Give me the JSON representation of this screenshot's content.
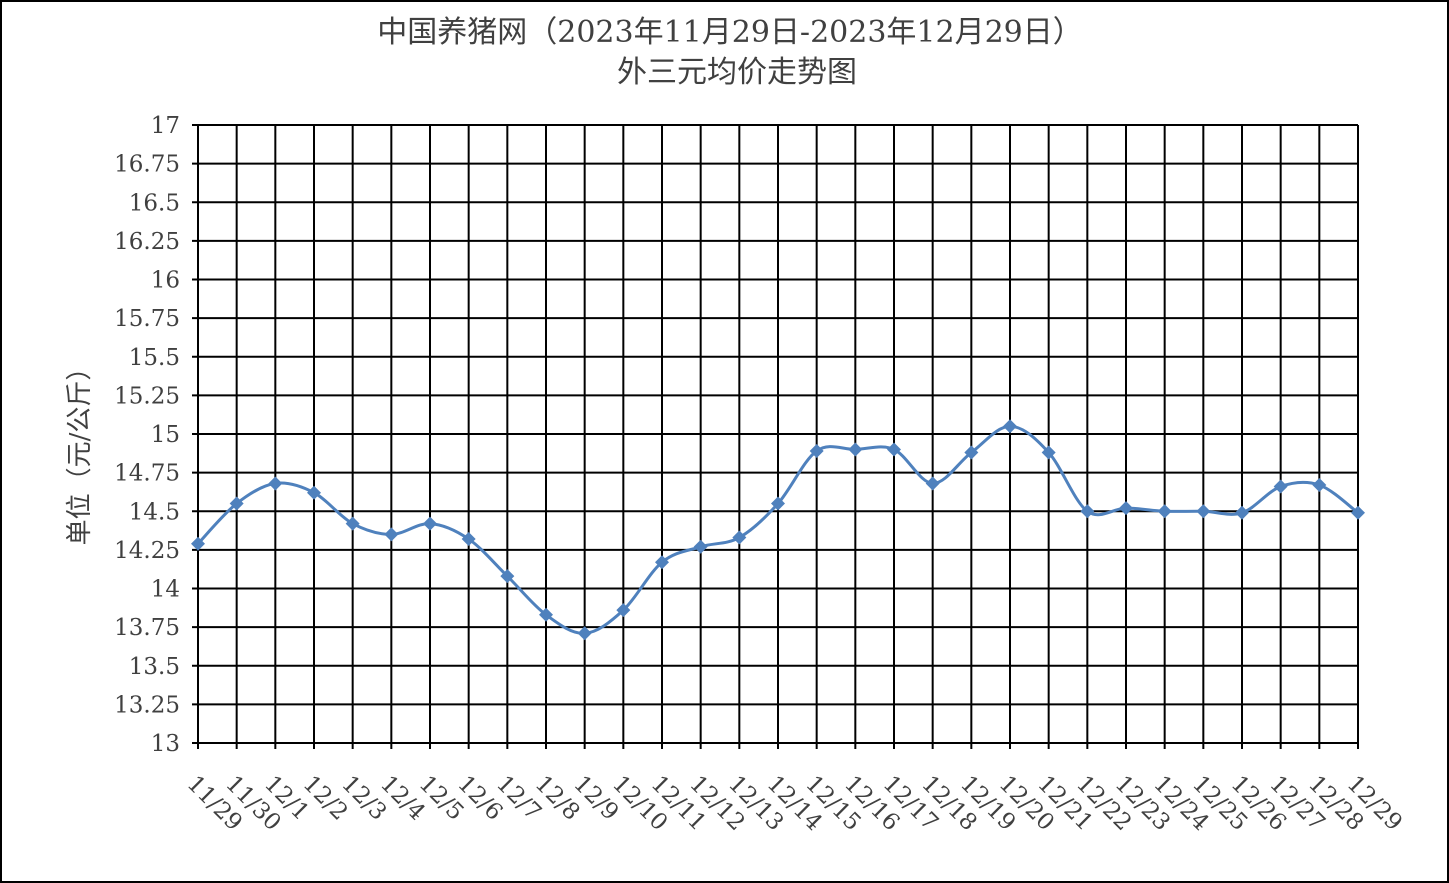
{
  "chart_data": {
    "type": "line",
    "title": "中国养猪网（2023年11月29日-2023年12月29日）",
    "subtitle": "外三元均价走势图",
    "y_label": "单位（元/公斤）",
    "categories": [
      "11/29",
      "11/30",
      "12/1",
      "12/2",
      "12/3",
      "12/4",
      "12/5",
      "12/6",
      "12/7",
      "12/8",
      "12/9",
      "12/10",
      "12/11",
      "12/12",
      "12/13",
      "12/14",
      "12/15",
      "12/16",
      "12/17",
      "12/18",
      "12/19",
      "12/20",
      "12/21",
      "12/22",
      "12/23",
      "12/24",
      "12/25",
      "12/26",
      "12/27",
      "12/28",
      "12/29"
    ],
    "values": [
      14.29,
      14.55,
      14.68,
      14.62,
      14.42,
      14.35,
      14.42,
      14.32,
      14.08,
      13.83,
      13.71,
      13.86,
      14.17,
      14.27,
      14.33,
      14.55,
      14.89,
      14.9,
      14.9,
      14.68,
      14.88,
      15.05,
      14.88,
      14.5,
      14.52,
      14.5,
      14.5,
      14.49,
      14.66,
      14.67,
      14.49
    ],
    "color": "#4f81bd",
    "ylim": [
      13,
      17
    ],
    "yticks": [
      13,
      13.25,
      13.5,
      13.75,
      14,
      14.25,
      14.5,
      14.75,
      15,
      15.25,
      15.5,
      15.75,
      16,
      16.25,
      16.5,
      16.75,
      17
    ],
    "grid": true
  }
}
